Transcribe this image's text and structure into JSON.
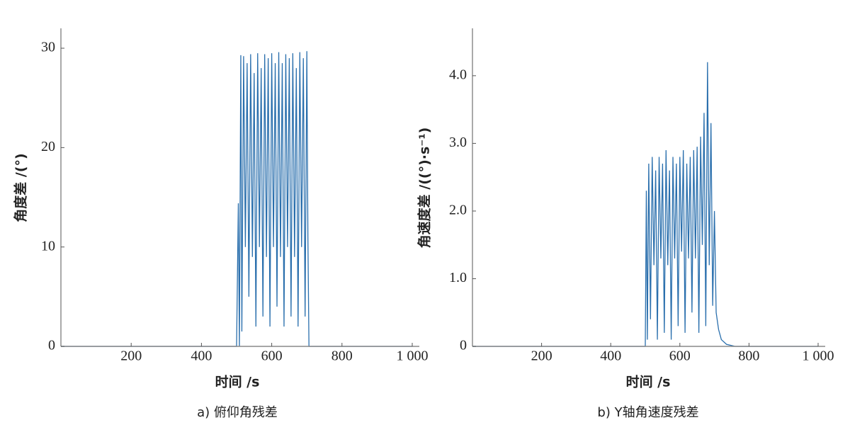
{
  "chart_data": [
    {
      "type": "line",
      "color": "#2a6fad",
      "ylabel": "角度差 /(°)",
      "xlabel": "时间 /s",
      "caption": "a)  俯仰角残差",
      "xlim": [
        0,
        1000
      ],
      "ylim": [
        0,
        32
      ],
      "xticks": [
        200,
        400,
        600,
        800,
        {
          "value": 1000,
          "label": "1 000"
        }
      ],
      "yticks": [
        0,
        10,
        20,
        30
      ],
      "x": [
        0,
        500,
        505,
        508,
        512,
        515,
        520,
        525,
        530,
        535,
        540,
        545,
        550,
        555,
        560,
        565,
        570,
        575,
        580,
        585,
        590,
        595,
        600,
        605,
        610,
        615,
        620,
        625,
        630,
        635,
        640,
        645,
        650,
        655,
        660,
        665,
        670,
        675,
        680,
        685,
        690,
        695,
        700,
        703,
        706,
        1000
      ],
      "values": [
        0,
        0,
        14.4,
        0,
        29.3,
        1.5,
        29.2,
        10,
        28.5,
        5,
        29.4,
        9,
        27.5,
        2,
        29.5,
        10,
        28,
        3,
        29.4,
        9,
        29,
        2,
        29.5,
        10,
        28.5,
        4,
        29.6,
        9,
        28.5,
        2,
        29.4,
        10,
        29,
        3,
        29.5,
        9,
        28,
        2,
        29.6,
        10,
        29,
        3,
        29.7,
        11,
        0,
        0
      ]
    },
    {
      "type": "line",
      "color": "#2a6fad",
      "ylabel": "角速度差 /((°)·s⁻¹)",
      "xlabel": "时间 /s",
      "caption": "b)   Y轴角速度残差",
      "xlim": [
        0,
        1000
      ],
      "ylim": [
        0,
        4.7
      ],
      "xticks": [
        200,
        400,
        600,
        800,
        {
          "value": 1000,
          "label": "1 000"
        }
      ],
      "yticks": [
        0,
        {
          "value": 1,
          "label": "1.0"
        },
        {
          "value": 2,
          "label": "2.0"
        },
        {
          "value": 3,
          "label": "3.0"
        },
        {
          "value": 4,
          "label": "4.0"
        }
      ],
      "x": [
        0,
        500,
        503,
        506,
        510,
        515,
        520,
        525,
        530,
        535,
        540,
        545,
        550,
        555,
        560,
        565,
        570,
        575,
        580,
        585,
        590,
        595,
        600,
        605,
        610,
        615,
        620,
        625,
        630,
        635,
        640,
        645,
        650,
        655,
        660,
        665,
        670,
        675,
        680,
        685,
        690,
        695,
        700,
        705,
        712,
        720,
        735,
        760,
        1000
      ],
      "values": [
        0,
        0,
        2.3,
        0.1,
        2.7,
        0.4,
        2.8,
        1.2,
        2.6,
        0.1,
        2.8,
        1.3,
        2.7,
        0.2,
        2.9,
        1.2,
        2.6,
        0.1,
        2.8,
        1.3,
        2.7,
        0.3,
        2.8,
        1.4,
        2.9,
        0.2,
        2.7,
        1.3,
        2.8,
        0.5,
        2.9,
        1.3,
        2.95,
        0.2,
        3.1,
        1.5,
        3.45,
        0.3,
        4.2,
        1.2,
        3.3,
        0.6,
        2.0,
        0.5,
        0.25,
        0.1,
        0.03,
        0,
        0
      ]
    }
  ]
}
